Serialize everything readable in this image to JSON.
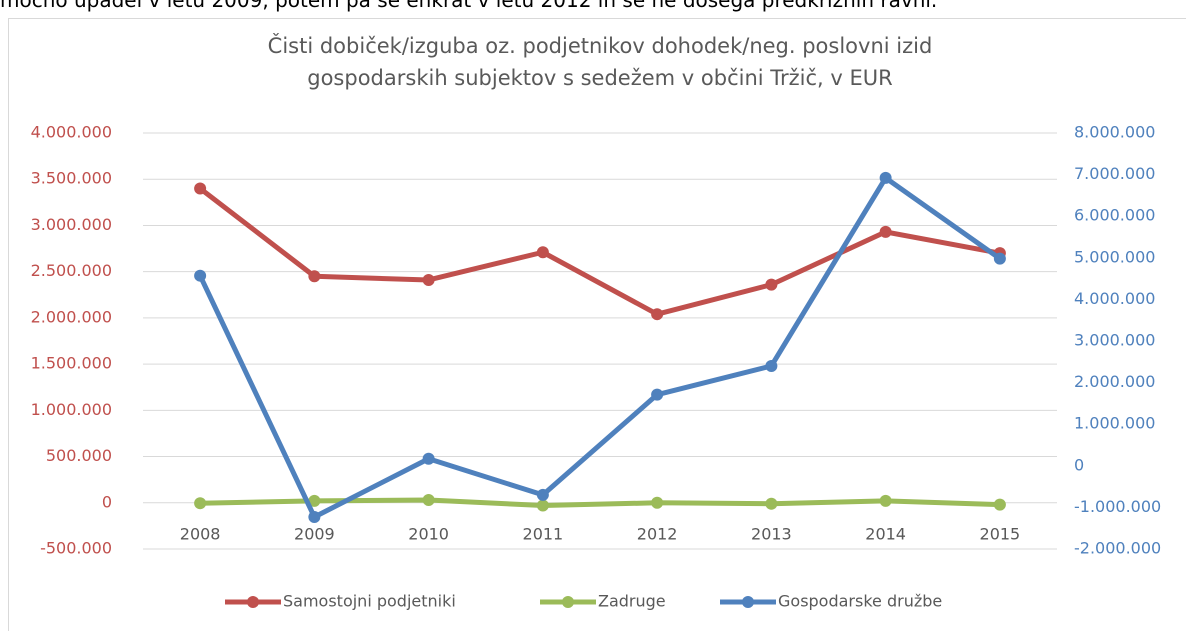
{
  "lead_text": "močno upadel v letu 2009, potem pa še enkrat v letu 2012 in še ne dosega predkriznih ravni.",
  "chart_data": {
    "type": "line",
    "title": "Čisti dobiček/izguba oz. podjetnikov dohodek/neg. poslovni izid gospodarskih subjektov s sedežem v občini Tržič, v EUR",
    "categories": [
      "2008",
      "2009",
      "2010",
      "2011",
      "2012",
      "2013",
      "2014",
      "2015"
    ],
    "series": [
      {
        "name": "Samostojni podjetniki",
        "color": "#c0504d",
        "values": [
          3400000,
          2450000,
          2410000,
          2710000,
          2040000,
          2360000,
          2930000,
          2700000
        ]
      },
      {
        "name": "Zadruge",
        "color": "#9bbb59",
        "values": [
          -5000,
          20000,
          30000,
          -30000,
          0,
          -10000,
          20000,
          -20000
        ]
      },
      {
        "name": "Gospodarske družbe",
        "color": "#4f81bd",
        "axis": "y2",
        "values": [
          4570000,
          -1230000,
          170000,
          -700000,
          1710000,
          2400000,
          6920000,
          4980000
        ]
      }
    ],
    "ylim": [
      -500000,
      4000000
    ],
    "yticks": [
      {
        "value": -500000,
        "label": "-500.000"
      },
      0,
      {
        "value": 500000,
        "label": "500.000"
      },
      {
        "value": 1000000,
        "label": "1.000.000"
      },
      {
        "value": 1500000,
        "label": "1.500.000"
      },
      {
        "value": 2000000,
        "label": "2.000.000"
      },
      {
        "value": 2500000,
        "label": "2.500.000"
      },
      {
        "value": 3000000,
        "label": "3.000.000"
      },
      {
        "value": 3500000,
        "label": "3.500.000"
      },
      {
        "value": 4000000,
        "label": "4.000.000"
      }
    ],
    "y2lim": [
      -2000000,
      8000000
    ],
    "y2ticks": [
      {
        "value": -2000000,
        "label": "-2.000.000"
      },
      {
        "value": -1000000,
        "label": "-1.000.000"
      },
      0,
      {
        "value": 1000000,
        "label": "1.000.000"
      },
      {
        "value": 2000000,
        "label": "2.000.000"
      },
      {
        "value": 3000000,
        "label": "3.000.000"
      },
      {
        "value": 4000000,
        "label": "4.000.000"
      },
      {
        "value": 5000000,
        "label": "5.000.000"
      },
      {
        "value": 6000000,
        "label": "6.000.000"
      },
      {
        "value": 7000000,
        "label": "7.000.000"
      },
      {
        "value": 8000000,
        "label": "8.000.000"
      }
    ],
    "ytick_color": "#c0504d",
    "y2tick_color": "#4f81bd",
    "grid": true,
    "legend": "bottom"
  }
}
